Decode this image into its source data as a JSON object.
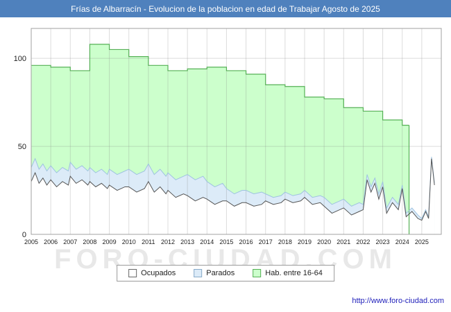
{
  "header": {
    "title": "Frías de Albarracín - Evolucion de la poblacion en edad de Trabajar Agosto de 2025"
  },
  "watermark": "FORO-CIUDAD.COM",
  "footer": {
    "url": "http://www.foro-ciudad.com"
  },
  "colors": {
    "title_bg": "#4f81bd",
    "title_text": "#ffffff",
    "grid": "rgba(130,130,130,0.28)",
    "axis": "#a0a0a0",
    "tick_text": "#222222",
    "url_text": "#2222bb"
  },
  "legend": {
    "items": [
      {
        "label": "Ocupados"
      },
      {
        "label": "Parados"
      },
      {
        "label": "Hab. entre 16-64"
      }
    ]
  },
  "chart_data": {
    "type": "area",
    "title": "Frías de Albarracín - Evolucion de la poblacion en edad de Trabajar Agosto de 2025",
    "xlabel": "",
    "ylabel": "",
    "xlim": [
      2005,
      2026
    ],
    "ylim": [
      0,
      117
    ],
    "x_ticks": [
      2005,
      2006,
      2007,
      2008,
      2009,
      2010,
      2011,
      2012,
      2013,
      2014,
      2015,
      2016,
      2017,
      2018,
      2019,
      2020,
      2021,
      2022,
      2023,
      2024,
      2025
    ],
    "y_ticks": [
      0,
      50,
      100
    ],
    "grid": true,
    "legend_position": "bottom",
    "series": [
      {
        "name": "Hab. entre 16-64",
        "style": "step-area",
        "fill": "#ccffcc",
        "stroke": "#55b055",
        "start": 2005,
        "end": 2024.35,
        "values": [
          96,
          95,
          93,
          108,
          105,
          101,
          96,
          93,
          94,
          95,
          93,
          91,
          85,
          84,
          78,
          77,
          72,
          70,
          65,
          62
        ]
      },
      {
        "name": "Parados (top edge = Ocupados + Parados)",
        "style": "area",
        "fill": "#dcebf8",
        "stroke": "#9fc3e0",
        "points": [
          [
            2005.0,
            38
          ],
          [
            2005.2,
            43
          ],
          [
            2005.4,
            37
          ],
          [
            2005.6,
            40
          ],
          [
            2005.8,
            36
          ],
          [
            2006.0,
            39
          ],
          [
            2006.3,
            35
          ],
          [
            2006.6,
            38
          ],
          [
            2006.9,
            36
          ],
          [
            2007.0,
            41
          ],
          [
            2007.3,
            37
          ],
          [
            2007.6,
            39
          ],
          [
            2007.9,
            36
          ],
          [
            2008.0,
            38
          ],
          [
            2008.3,
            35
          ],
          [
            2008.6,
            37
          ],
          [
            2008.9,
            34
          ],
          [
            2009.0,
            37
          ],
          [
            2009.4,
            34
          ],
          [
            2009.8,
            36
          ],
          [
            2010.0,
            37
          ],
          [
            2010.4,
            34
          ],
          [
            2010.8,
            36
          ],
          [
            2011.0,
            40
          ],
          [
            2011.3,
            34
          ],
          [
            2011.6,
            37
          ],
          [
            2011.9,
            33
          ],
          [
            2012.0,
            35
          ],
          [
            2012.4,
            31
          ],
          [
            2012.8,
            33
          ],
          [
            2013.0,
            34
          ],
          [
            2013.4,
            31
          ],
          [
            2013.8,
            33
          ],
          [
            2014.0,
            30
          ],
          [
            2014.4,
            27
          ],
          [
            2014.8,
            29
          ],
          [
            2015.0,
            26
          ],
          [
            2015.4,
            23
          ],
          [
            2015.8,
            25
          ],
          [
            2016.0,
            25
          ],
          [
            2016.4,
            23
          ],
          [
            2016.8,
            24
          ],
          [
            2017.0,
            23
          ],
          [
            2017.4,
            21
          ],
          [
            2017.8,
            22
          ],
          [
            2018.0,
            24
          ],
          [
            2018.4,
            22
          ],
          [
            2018.8,
            23
          ],
          [
            2019.0,
            25
          ],
          [
            2019.4,
            21
          ],
          [
            2019.8,
            22
          ],
          [
            2020.0,
            21
          ],
          [
            2020.4,
            17
          ],
          [
            2020.8,
            19
          ],
          [
            2021.0,
            20
          ],
          [
            2021.4,
            16
          ],
          [
            2021.8,
            18
          ],
          [
            2022.0,
            17
          ],
          [
            2022.2,
            34
          ],
          [
            2022.4,
            27
          ],
          [
            2022.6,
            32
          ],
          [
            2022.8,
            23
          ],
          [
            2023.0,
            30
          ],
          [
            2023.2,
            15
          ],
          [
            2023.5,
            21
          ],
          [
            2023.8,
            17
          ],
          [
            2024.0,
            28
          ],
          [
            2024.2,
            12
          ],
          [
            2024.5,
            15
          ],
          [
            2024.8,
            11
          ],
          [
            2025.0,
            9
          ],
          [
            2025.2,
            14
          ],
          [
            2025.35,
            10
          ],
          [
            2025.5,
            44
          ],
          [
            2025.65,
            29
          ]
        ]
      },
      {
        "name": "Ocupados",
        "style": "area",
        "fill": "#ffffff",
        "stroke": "#555555",
        "points": [
          [
            2005.0,
            30
          ],
          [
            2005.2,
            35
          ],
          [
            2005.4,
            29
          ],
          [
            2005.6,
            32
          ],
          [
            2005.8,
            28
          ],
          [
            2006.0,
            31
          ],
          [
            2006.3,
            27
          ],
          [
            2006.6,
            30
          ],
          [
            2006.9,
            28
          ],
          [
            2007.0,
            33
          ],
          [
            2007.3,
            29
          ],
          [
            2007.6,
            31
          ],
          [
            2007.9,
            28
          ],
          [
            2008.0,
            30
          ],
          [
            2008.3,
            27
          ],
          [
            2008.6,
            29
          ],
          [
            2008.9,
            26
          ],
          [
            2009.0,
            28
          ],
          [
            2009.4,
            25
          ],
          [
            2009.8,
            27
          ],
          [
            2010.0,
            27
          ],
          [
            2010.4,
            24
          ],
          [
            2010.8,
            26
          ],
          [
            2011.0,
            30
          ],
          [
            2011.3,
            24
          ],
          [
            2011.6,
            27
          ],
          [
            2011.9,
            23
          ],
          [
            2012.0,
            25
          ],
          [
            2012.4,
            21
          ],
          [
            2012.8,
            23
          ],
          [
            2013.0,
            22
          ],
          [
            2013.4,
            19
          ],
          [
            2013.8,
            21
          ],
          [
            2014.0,
            20
          ],
          [
            2014.4,
            17
          ],
          [
            2014.8,
            19
          ],
          [
            2015.0,
            19
          ],
          [
            2015.4,
            16
          ],
          [
            2015.8,
            18
          ],
          [
            2016.0,
            18
          ],
          [
            2016.4,
            16
          ],
          [
            2016.8,
            17
          ],
          [
            2017.0,
            19
          ],
          [
            2017.4,
            17
          ],
          [
            2017.8,
            18
          ],
          [
            2018.0,
            20
          ],
          [
            2018.4,
            18
          ],
          [
            2018.8,
            19
          ],
          [
            2019.0,
            21
          ],
          [
            2019.4,
            17
          ],
          [
            2019.8,
            18
          ],
          [
            2020.0,
            16
          ],
          [
            2020.4,
            12
          ],
          [
            2020.8,
            14
          ],
          [
            2021.0,
            15
          ],
          [
            2021.4,
            11
          ],
          [
            2021.8,
            13
          ],
          [
            2022.0,
            14
          ],
          [
            2022.2,
            31
          ],
          [
            2022.4,
            24
          ],
          [
            2022.6,
            29
          ],
          [
            2022.8,
            20
          ],
          [
            2023.0,
            27
          ],
          [
            2023.2,
            12
          ],
          [
            2023.5,
            18
          ],
          [
            2023.8,
            14
          ],
          [
            2024.0,
            26
          ],
          [
            2024.2,
            10
          ],
          [
            2024.5,
            13
          ],
          [
            2024.8,
            9
          ],
          [
            2025.0,
            8
          ],
          [
            2025.2,
            13
          ],
          [
            2025.35,
            9
          ],
          [
            2025.5,
            43
          ],
          [
            2025.65,
            28
          ]
        ]
      }
    ]
  }
}
